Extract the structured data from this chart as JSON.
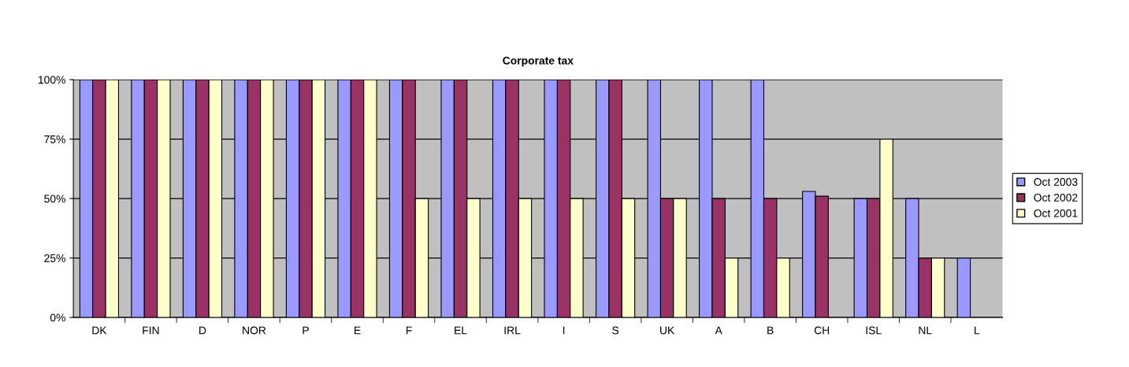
{
  "chart_data": {
    "type": "bar",
    "title": "Corporate tax",
    "categories": [
      "DK",
      "FIN",
      "D",
      "NOR",
      "P",
      "E",
      "F",
      "EL",
      "IRL",
      "I",
      "S",
      "UK",
      "A",
      "B",
      "CH",
      "ISL",
      "NL",
      "L"
    ],
    "series": [
      {
        "name": "Oct 2003",
        "color": "#9999ff",
        "values": [
          100,
          100,
          100,
          100,
          100,
          100,
          100,
          100,
          100,
          100,
          100,
          100,
          100,
          100,
          53,
          50,
          50,
          25
        ]
      },
      {
        "name": "Oct 2002",
        "color": "#993366",
        "values": [
          100,
          100,
          100,
          100,
          100,
          100,
          100,
          100,
          100,
          100,
          100,
          50,
          50,
          50,
          51,
          50,
          25,
          null
        ]
      },
      {
        "name": "Oct 2001",
        "color": "#ffffcc",
        "values": [
          100,
          100,
          100,
          100,
          100,
          100,
          50,
          50,
          50,
          50,
          50,
          50,
          25,
          25,
          null,
          75,
          25,
          null
        ]
      }
    ],
    "ylim": [
      0,
      100
    ],
    "yticks": [
      {
        "value": 0,
        "label": "0%"
      },
      {
        "value": 25,
        "label": "25%"
      },
      {
        "value": 50,
        "label": "50%"
      },
      {
        "value": 75,
        "label": "75%"
      },
      {
        "value": 100,
        "label": "100%"
      }
    ],
    "grid": "y",
    "legend": "right"
  }
}
